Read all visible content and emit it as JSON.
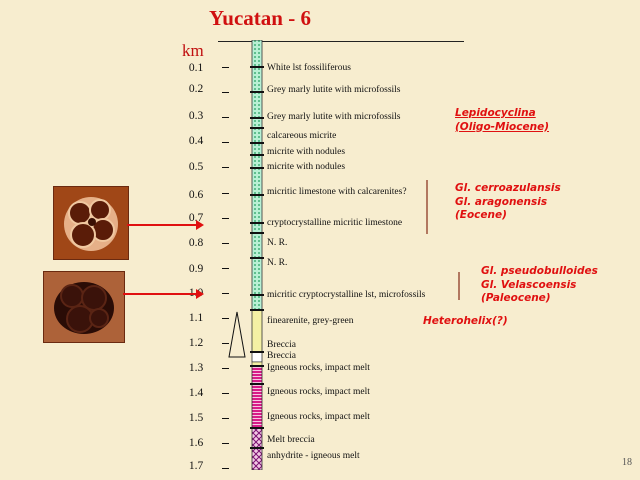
{
  "title": "Yucatan - 6",
  "depth_unit": "km",
  "page_number": "18",
  "depth_labels": [
    "0.1",
    "0.2",
    "0.3",
    "0.4",
    "0.5",
    "0.6",
    "0.7",
    "0.8",
    "0.9",
    "1.0",
    "1.1",
    "1.2",
    "1.3",
    "1.4",
    "1.5",
    "1.6",
    "1.7"
  ],
  "lithology": [
    "White lst fossiliferous",
    "Grey marly lutite with microfossils",
    "Grey marly lutite with microfossils",
    "calcareous micrite",
    "micrite with nodules",
    "micrite with nodules",
    "micritic limestone with calcarenites?",
    "cryptocrystalline micritic limestone",
    "N. R.",
    "N. R.",
    "micritic cryptocrystalline lst, microfossils",
    "finearenite, grey-green",
    "Breccia",
    "Breccia",
    "Igneous rocks, impact melt",
    "Igneous rocks, impact melt",
    "Igneous rocks, impact melt",
    "Melt breccia",
    "anhydrite - igneous melt"
  ],
  "fossils": {
    "lepidocyclina": [
      "Lepidocyclina",
      "(Oligo-Miocene)"
    ],
    "eocene": [
      "Gl. cerroazulansis",
      "Gl. aragonensis",
      "(Eocene)"
    ],
    "paleocene": [
      "Gl. pseudobulloides",
      "Gl. Velascoensis",
      "(Paleocene)"
    ],
    "heterohelix": "Heterohelix(?)"
  },
  "colors": {
    "background": "#f7edcf",
    "title": "#d01010",
    "fossil_text": "#e01010",
    "column_green": "#b8f0d4",
    "column_yellow": "#f4f0a4",
    "column_magenta": "#d81c88"
  }
}
